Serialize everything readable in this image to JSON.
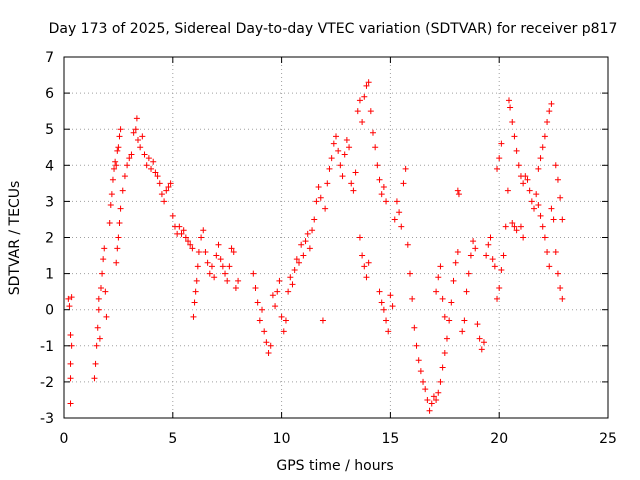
{
  "chart_data": {
    "type": "scatter",
    "title": "Day 173 of 2025, Sidereal Day-to-day VTEC variation (SDTVAR) for receiver p817",
    "xlabel": "GPS time / hours",
    "ylabel": "SDTVAR / TECUs",
    "xlim": [
      0,
      25
    ],
    "ylim": [
      -3,
      7
    ],
    "xticks": [
      0,
      5,
      10,
      15,
      20,
      25
    ],
    "yticks": [
      -3,
      -2,
      -1,
      0,
      1,
      2,
      3,
      4,
      5,
      6,
      7
    ],
    "grid": true,
    "marker": "+",
    "color": "#ff0000",
    "series": [
      {
        "name": "SDTVAR",
        "points": [
          [
            0.2,
            0.3
          ],
          [
            0.25,
            0.1
          ],
          [
            0.3,
            -0.7
          ],
          [
            0.3,
            -1.5
          ],
          [
            0.3,
            -1.9
          ],
          [
            0.3,
            -2.6
          ],
          [
            0.35,
            0.35
          ],
          [
            0.35,
            -1.0
          ],
          [
            1.4,
            -1.9
          ],
          [
            1.45,
            -1.5
          ],
          [
            1.5,
            -1.0
          ],
          [
            1.55,
            -0.5
          ],
          [
            1.6,
            0.0
          ],
          [
            1.6,
            0.3
          ],
          [
            1.65,
            -0.8
          ],
          [
            1.7,
            0.6
          ],
          [
            1.75,
            1.0
          ],
          [
            1.8,
            1.4
          ],
          [
            1.85,
            1.7
          ],
          [
            1.9,
            0.5
          ],
          [
            1.95,
            -0.2
          ],
          [
            2.1,
            2.4
          ],
          [
            2.15,
            2.9
          ],
          [
            2.2,
            3.2
          ],
          [
            2.25,
            3.6
          ],
          [
            2.3,
            3.9
          ],
          [
            2.35,
            4.1
          ],
          [
            2.4,
            4.0
          ],
          [
            2.45,
            4.4
          ],
          [
            2.5,
            4.5
          ],
          [
            2.55,
            4.8
          ],
          [
            2.6,
            5.0
          ],
          [
            2.4,
            1.3
          ],
          [
            2.45,
            1.7
          ],
          [
            2.5,
            2.0
          ],
          [
            2.55,
            2.4
          ],
          [
            2.6,
            2.8
          ],
          [
            2.7,
            3.3
          ],
          [
            2.8,
            3.7
          ],
          [
            2.9,
            4.0
          ],
          [
            3.0,
            4.2
          ],
          [
            3.1,
            4.3
          ],
          [
            3.2,
            4.9
          ],
          [
            3.3,
            5.0
          ],
          [
            3.35,
            5.3
          ],
          [
            3.4,
            4.7
          ],
          [
            3.5,
            4.5
          ],
          [
            3.6,
            4.8
          ],
          [
            3.7,
            4.3
          ],
          [
            3.8,
            4.0
          ],
          [
            3.9,
            4.2
          ],
          [
            4.0,
            3.9
          ],
          [
            4.1,
            4.1
          ],
          [
            4.2,
            3.8
          ],
          [
            4.3,
            3.7
          ],
          [
            4.4,
            3.5
          ],
          [
            4.5,
            3.2
          ],
          [
            4.6,
            3.0
          ],
          [
            4.7,
            3.3
          ],
          [
            4.8,
            3.4
          ],
          [
            4.9,
            3.5
          ],
          [
            5.0,
            2.6
          ],
          [
            5.1,
            2.3
          ],
          [
            5.2,
            2.1
          ],
          [
            5.3,
            2.3
          ],
          [
            5.4,
            2.1
          ],
          [
            5.5,
            2.2
          ],
          [
            5.6,
            2.0
          ],
          [
            5.7,
            1.9
          ],
          [
            5.8,
            1.8
          ],
          [
            5.9,
            1.7
          ],
          [
            5.95,
            -0.2
          ],
          [
            6.0,
            0.2
          ],
          [
            6.05,
            0.5
          ],
          [
            6.1,
            0.8
          ],
          [
            6.15,
            1.2
          ],
          [
            6.2,
            1.6
          ],
          [
            6.3,
            2.0
          ],
          [
            6.4,
            2.2
          ],
          [
            6.5,
            1.6
          ],
          [
            6.6,
            1.3
          ],
          [
            6.7,
            1.0
          ],
          [
            6.8,
            1.2
          ],
          [
            6.9,
            0.9
          ],
          [
            7.0,
            1.5
          ],
          [
            7.1,
            1.8
          ],
          [
            7.2,
            1.4
          ],
          [
            7.3,
            1.2
          ],
          [
            7.4,
            1.0
          ],
          [
            7.5,
            0.8
          ],
          [
            7.6,
            1.2
          ],
          [
            7.7,
            1.7
          ],
          [
            7.8,
            1.6
          ],
          [
            7.9,
            0.6
          ],
          [
            8.0,
            0.8
          ],
          [
            8.7,
            1.0
          ],
          [
            8.8,
            0.6
          ],
          [
            8.9,
            0.2
          ],
          [
            9.0,
            -0.3
          ],
          [
            9.1,
            0.0
          ],
          [
            9.2,
            -0.6
          ],
          [
            9.3,
            -0.9
          ],
          [
            9.4,
            -1.2
          ],
          [
            9.5,
            -1.0
          ],
          [
            9.6,
            0.4
          ],
          [
            9.7,
            0.1
          ],
          [
            9.8,
            0.5
          ],
          [
            9.9,
            0.8
          ],
          [
            10.0,
            -0.2
          ],
          [
            10.1,
            -0.6
          ],
          [
            10.2,
            -0.3
          ],
          [
            10.3,
            0.5
          ],
          [
            10.4,
            0.9
          ],
          [
            10.5,
            0.7
          ],
          [
            10.6,
            1.1
          ],
          [
            10.7,
            1.4
          ],
          [
            10.8,
            1.3
          ],
          [
            10.9,
            1.8
          ],
          [
            11.0,
            1.5
          ],
          [
            11.1,
            1.9
          ],
          [
            11.2,
            2.1
          ],
          [
            11.3,
            1.7
          ],
          [
            11.4,
            2.2
          ],
          [
            11.5,
            2.5
          ],
          [
            11.6,
            3.0
          ],
          [
            11.7,
            3.4
          ],
          [
            11.8,
            3.1
          ],
          [
            11.9,
            -0.3
          ],
          [
            12.0,
            2.8
          ],
          [
            12.1,
            3.5
          ],
          [
            12.2,
            3.9
          ],
          [
            12.3,
            4.2
          ],
          [
            12.4,
            4.6
          ],
          [
            12.5,
            4.8
          ],
          [
            12.6,
            4.4
          ],
          [
            12.7,
            4.0
          ],
          [
            12.8,
            3.7
          ],
          [
            12.9,
            4.3
          ],
          [
            13.0,
            4.7
          ],
          [
            13.1,
            4.5
          ],
          [
            13.2,
            3.5
          ],
          [
            13.3,
            3.3
          ],
          [
            13.4,
            3.8
          ],
          [
            13.5,
            5.5
          ],
          [
            13.6,
            5.8
          ],
          [
            13.7,
            5.2
          ],
          [
            13.8,
            5.9
          ],
          [
            13.9,
            6.2
          ],
          [
            14.0,
            6.3
          ],
          [
            14.1,
            5.5
          ],
          [
            14.2,
            4.9
          ],
          [
            14.3,
            4.5
          ],
          [
            14.4,
            4.0
          ],
          [
            14.5,
            3.6
          ],
          [
            14.6,
            3.2
          ],
          [
            14.7,
            3.4
          ],
          [
            14.8,
            3.0
          ],
          [
            13.6,
            2.0
          ],
          [
            13.7,
            1.5
          ],
          [
            13.8,
            1.2
          ],
          [
            13.9,
            0.9
          ],
          [
            14.0,
            1.3
          ],
          [
            14.5,
            0.5
          ],
          [
            14.6,
            0.2
          ],
          [
            14.7,
            0.0
          ],
          [
            14.8,
            -0.3
          ],
          [
            14.9,
            -0.6
          ],
          [
            15.0,
            0.4
          ],
          [
            15.1,
            0.1
          ],
          [
            15.2,
            2.5
          ],
          [
            15.3,
            3.0
          ],
          [
            15.4,
            2.7
          ],
          [
            15.5,
            2.3
          ],
          [
            15.6,
            3.5
          ],
          [
            15.7,
            3.9
          ],
          [
            15.8,
            1.8
          ],
          [
            15.9,
            1.0
          ],
          [
            16.0,
            0.3
          ],
          [
            16.1,
            -0.5
          ],
          [
            16.2,
            -1.0
          ],
          [
            16.3,
            -1.4
          ],
          [
            16.4,
            -1.7
          ],
          [
            16.5,
            -2.0
          ],
          [
            16.6,
            -2.2
          ],
          [
            16.7,
            -2.5
          ],
          [
            16.8,
            -2.8
          ],
          [
            16.9,
            -2.6
          ],
          [
            17.0,
            -2.4
          ],
          [
            17.1,
            -2.5
          ],
          [
            17.2,
            -2.3
          ],
          [
            17.3,
            -2.0
          ],
          [
            17.4,
            -1.6
          ],
          [
            17.5,
            -1.2
          ],
          [
            17.6,
            -0.8
          ],
          [
            17.7,
            -0.3
          ],
          [
            17.8,
            0.2
          ],
          [
            17.9,
            0.8
          ],
          [
            18.0,
            1.3
          ],
          [
            18.1,
            1.6
          ],
          [
            17.1,
            0.5
          ],
          [
            17.2,
            0.9
          ],
          [
            17.3,
            1.2
          ],
          [
            17.4,
            0.3
          ],
          [
            17.5,
            -0.2
          ],
          [
            18.1,
            3.3
          ],
          [
            18.15,
            3.2
          ],
          [
            18.3,
            -0.6
          ],
          [
            18.4,
            -0.3
          ],
          [
            18.5,
            0.5
          ],
          [
            18.6,
            1.0
          ],
          [
            18.7,
            1.5
          ],
          [
            18.8,
            1.9
          ],
          [
            18.9,
            1.7
          ],
          [
            19.0,
            -0.4
          ],
          [
            19.1,
            -0.8
          ],
          [
            19.2,
            -1.1
          ],
          [
            19.3,
            -0.9
          ],
          [
            19.4,
            1.5
          ],
          [
            19.5,
            1.8
          ],
          [
            19.6,
            2.0
          ],
          [
            19.7,
            1.4
          ],
          [
            19.8,
            1.2
          ],
          [
            19.9,
            3.9
          ],
          [
            20.0,
            4.2
          ],
          [
            20.1,
            4.6
          ],
          [
            19.9,
            0.3
          ],
          [
            20.0,
            0.6
          ],
          [
            20.1,
            1.1
          ],
          [
            20.2,
            1.5
          ],
          [
            20.3,
            2.3
          ],
          [
            20.4,
            3.3
          ],
          [
            20.45,
            5.8
          ],
          [
            20.5,
            5.6
          ],
          [
            20.6,
            5.2
          ],
          [
            20.7,
            4.8
          ],
          [
            20.8,
            4.4
          ],
          [
            20.9,
            4.0
          ],
          [
            21.0,
            3.7
          ],
          [
            21.1,
            3.5
          ],
          [
            20.6,
            2.4
          ],
          [
            20.7,
            2.3
          ],
          [
            20.8,
            2.2
          ],
          [
            21.0,
            2.3
          ],
          [
            21.1,
            2.0
          ],
          [
            21.2,
            3.7
          ],
          [
            21.3,
            3.6
          ],
          [
            21.4,
            3.3
          ],
          [
            21.5,
            3.0
          ],
          [
            21.6,
            2.8
          ],
          [
            21.7,
            3.2
          ],
          [
            21.8,
            3.9
          ],
          [
            21.9,
            4.2
          ],
          [
            22.0,
            4.5
          ],
          [
            22.1,
            4.8
          ],
          [
            22.2,
            5.2
          ],
          [
            22.3,
            5.5
          ],
          [
            22.4,
            5.7
          ],
          [
            21.8,
            2.9
          ],
          [
            21.9,
            2.6
          ],
          [
            22.0,
            2.3
          ],
          [
            22.1,
            2.0
          ],
          [
            22.2,
            1.6
          ],
          [
            22.3,
            1.2
          ],
          [
            22.4,
            2.8
          ],
          [
            22.5,
            2.5
          ],
          [
            22.6,
            4.0
          ],
          [
            22.7,
            3.6
          ],
          [
            22.8,
            3.1
          ],
          [
            22.9,
            2.5
          ],
          [
            22.6,
            1.6
          ],
          [
            22.7,
            1.0
          ],
          [
            22.8,
            0.6
          ],
          [
            22.9,
            0.3
          ]
        ]
      }
    ]
  }
}
